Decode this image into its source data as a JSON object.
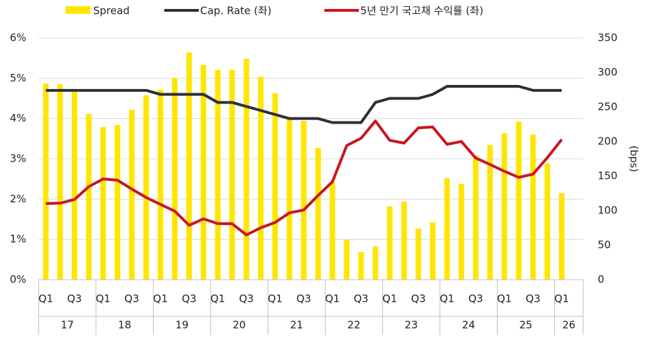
{
  "chart_data": {
    "type": "bar_line",
    "y2_label": "(bps)",
    "categories": [
      "Q1",
      null,
      "Q3",
      null,
      "Q1",
      null,
      "Q3",
      null,
      "Q1",
      null,
      "Q3",
      null,
      "Q1",
      null,
      "Q3",
      null,
      "Q1",
      null,
      "Q3",
      null,
      "Q1",
      null,
      "Q3",
      null,
      "Q1",
      null,
      "Q3",
      null,
      "Q1",
      null,
      "Q3",
      null,
      "Q1",
      null,
      "Q3",
      null,
      "Q1"
    ],
    "groups": [
      "17",
      "18",
      "19",
      "20",
      "21",
      "22",
      "23",
      "24",
      "25",
      "26"
    ],
    "ylim": [
      0,
      6
    ],
    "yticks": [
      {
        "value": 0,
        "label": "0%"
      },
      {
        "value": 1,
        "label": "1%"
      },
      {
        "value": 2,
        "label": "2%"
      },
      {
        "value": 3,
        "label": "3%"
      },
      {
        "value": 4,
        "label": "4%"
      },
      {
        "value": 5,
        "label": "5%"
      },
      {
        "value": 6,
        "label": "6%"
      }
    ],
    "y2lim": [
      0,
      350
    ],
    "y2ticks": [
      0,
      50,
      100,
      150,
      200,
      250,
      300,
      350
    ],
    "grid": true,
    "series": [
      {
        "name": "Spread",
        "type": "bar",
        "axis": "y2",
        "color": "#ffe600",
        "values": [
          284,
          283,
          275,
          240,
          221,
          224,
          246,
          267,
          275,
          292,
          329,
          311,
          304,
          304,
          320,
          294,
          270,
          235,
          230,
          191,
          141,
          58,
          40,
          48,
          106,
          113,
          74,
          83,
          147,
          139,
          180,
          195,
          212,
          229,
          210,
          168,
          125
        ]
      },
      {
        "name": "Cap. Rate (좌)",
        "type": "line",
        "color": "#2e2e38",
        "values": [
          4.7,
          4.7,
          4.7,
          4.7,
          4.7,
          4.7,
          4.7,
          4.7,
          4.6,
          4.6,
          4.6,
          4.6,
          4.4,
          4.4,
          4.3,
          4.2,
          4.1,
          4.0,
          4.0,
          4.0,
          3.9,
          3.9,
          3.9,
          4.4,
          4.5,
          4.5,
          4.5,
          4.6,
          4.8,
          4.8,
          4.8,
          4.8,
          4.8,
          4.8,
          4.7,
          4.7,
          4.7
        ]
      },
      {
        "name": "5년 만기 국고채 수익률 (좌)",
        "type": "line",
        "color": "#c8161d",
        "values": [
          1.89,
          1.9,
          1.99,
          2.31,
          2.5,
          2.47,
          2.25,
          2.04,
          1.87,
          1.7,
          1.35,
          1.51,
          1.39,
          1.39,
          1.11,
          1.29,
          1.42,
          1.66,
          1.73,
          2.09,
          2.43,
          3.33,
          3.51,
          3.94,
          3.46,
          3.39,
          3.77,
          3.79,
          3.36,
          3.43,
          3.02,
          2.86,
          2.69,
          2.54,
          2.62,
          3.03,
          3.48
        ]
      }
    ]
  }
}
